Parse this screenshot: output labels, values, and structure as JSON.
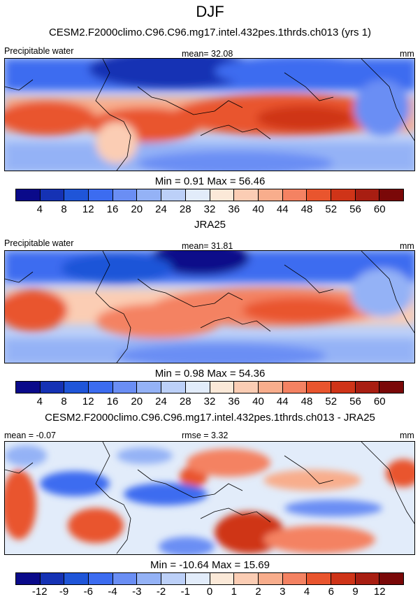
{
  "season": "DJF",
  "colors": {
    "abs": [
      "#0a0a8a",
      "#1532b4",
      "#1f55d8",
      "#3c6cf0",
      "#6a8ef4",
      "#94b2f6",
      "#bcd0f8",
      "#e2ecfa",
      "#fbe9d8",
      "#fbcdb4",
      "#f8ad8c",
      "#f48262",
      "#e9552e",
      "#cf3418",
      "#a81e12",
      "#7a0808"
    ],
    "diff": [
      "#0a0a8a",
      "#1532b4",
      "#1f55d8",
      "#3c6cf0",
      "#6a8ef4",
      "#94b2f6",
      "#bcd0f8",
      "#e2ecfa",
      "#fbe9d8",
      "#fbcdb4",
      "#f8ad8c",
      "#f48262",
      "#e9552e",
      "#cf3418",
      "#a81e12",
      "#7a0808"
    ]
  },
  "panels": [
    {
      "title": "CESM2.F2000climo.C96.C96.mg17.intel.432pes.1thrds.ch013 (yrs 1)",
      "left_label": "Precipitable water",
      "center_label": "mean=  32.08",
      "units": "mm",
      "minmax": "Min =   0.91 Max =  56.46",
      "ticks": [
        "4",
        "8",
        "12",
        "16",
        "20",
        "24",
        "28",
        "32",
        "36",
        "40",
        "44",
        "48",
        "52",
        "56",
        "60"
      ]
    },
    {
      "title": "JRA25",
      "left_label": "Precipitable water",
      "center_label": "mean=  31.81",
      "units": "mm",
      "minmax": "Min =   0.98 Max =  54.36",
      "ticks": [
        "4",
        "8",
        "12",
        "16",
        "20",
        "24",
        "28",
        "32",
        "36",
        "40",
        "44",
        "48",
        "52",
        "56",
        "60"
      ]
    },
    {
      "title": "CESM2.F2000climo.C96.C96.mg17.intel.432pes.1thrds.ch013 - JRA25",
      "left_label": "mean =  -0.07",
      "center_label": "rmse =   3.32",
      "units": "mm",
      "minmax": "Min = -10.64 Max =  15.69",
      "ticks": [
        "-12",
        "-9",
        "-6",
        "-4",
        "-3",
        "-2",
        "-1",
        "0",
        "1",
        "2",
        "3",
        "4",
        "6",
        "9",
        "12"
      ]
    }
  ]
}
